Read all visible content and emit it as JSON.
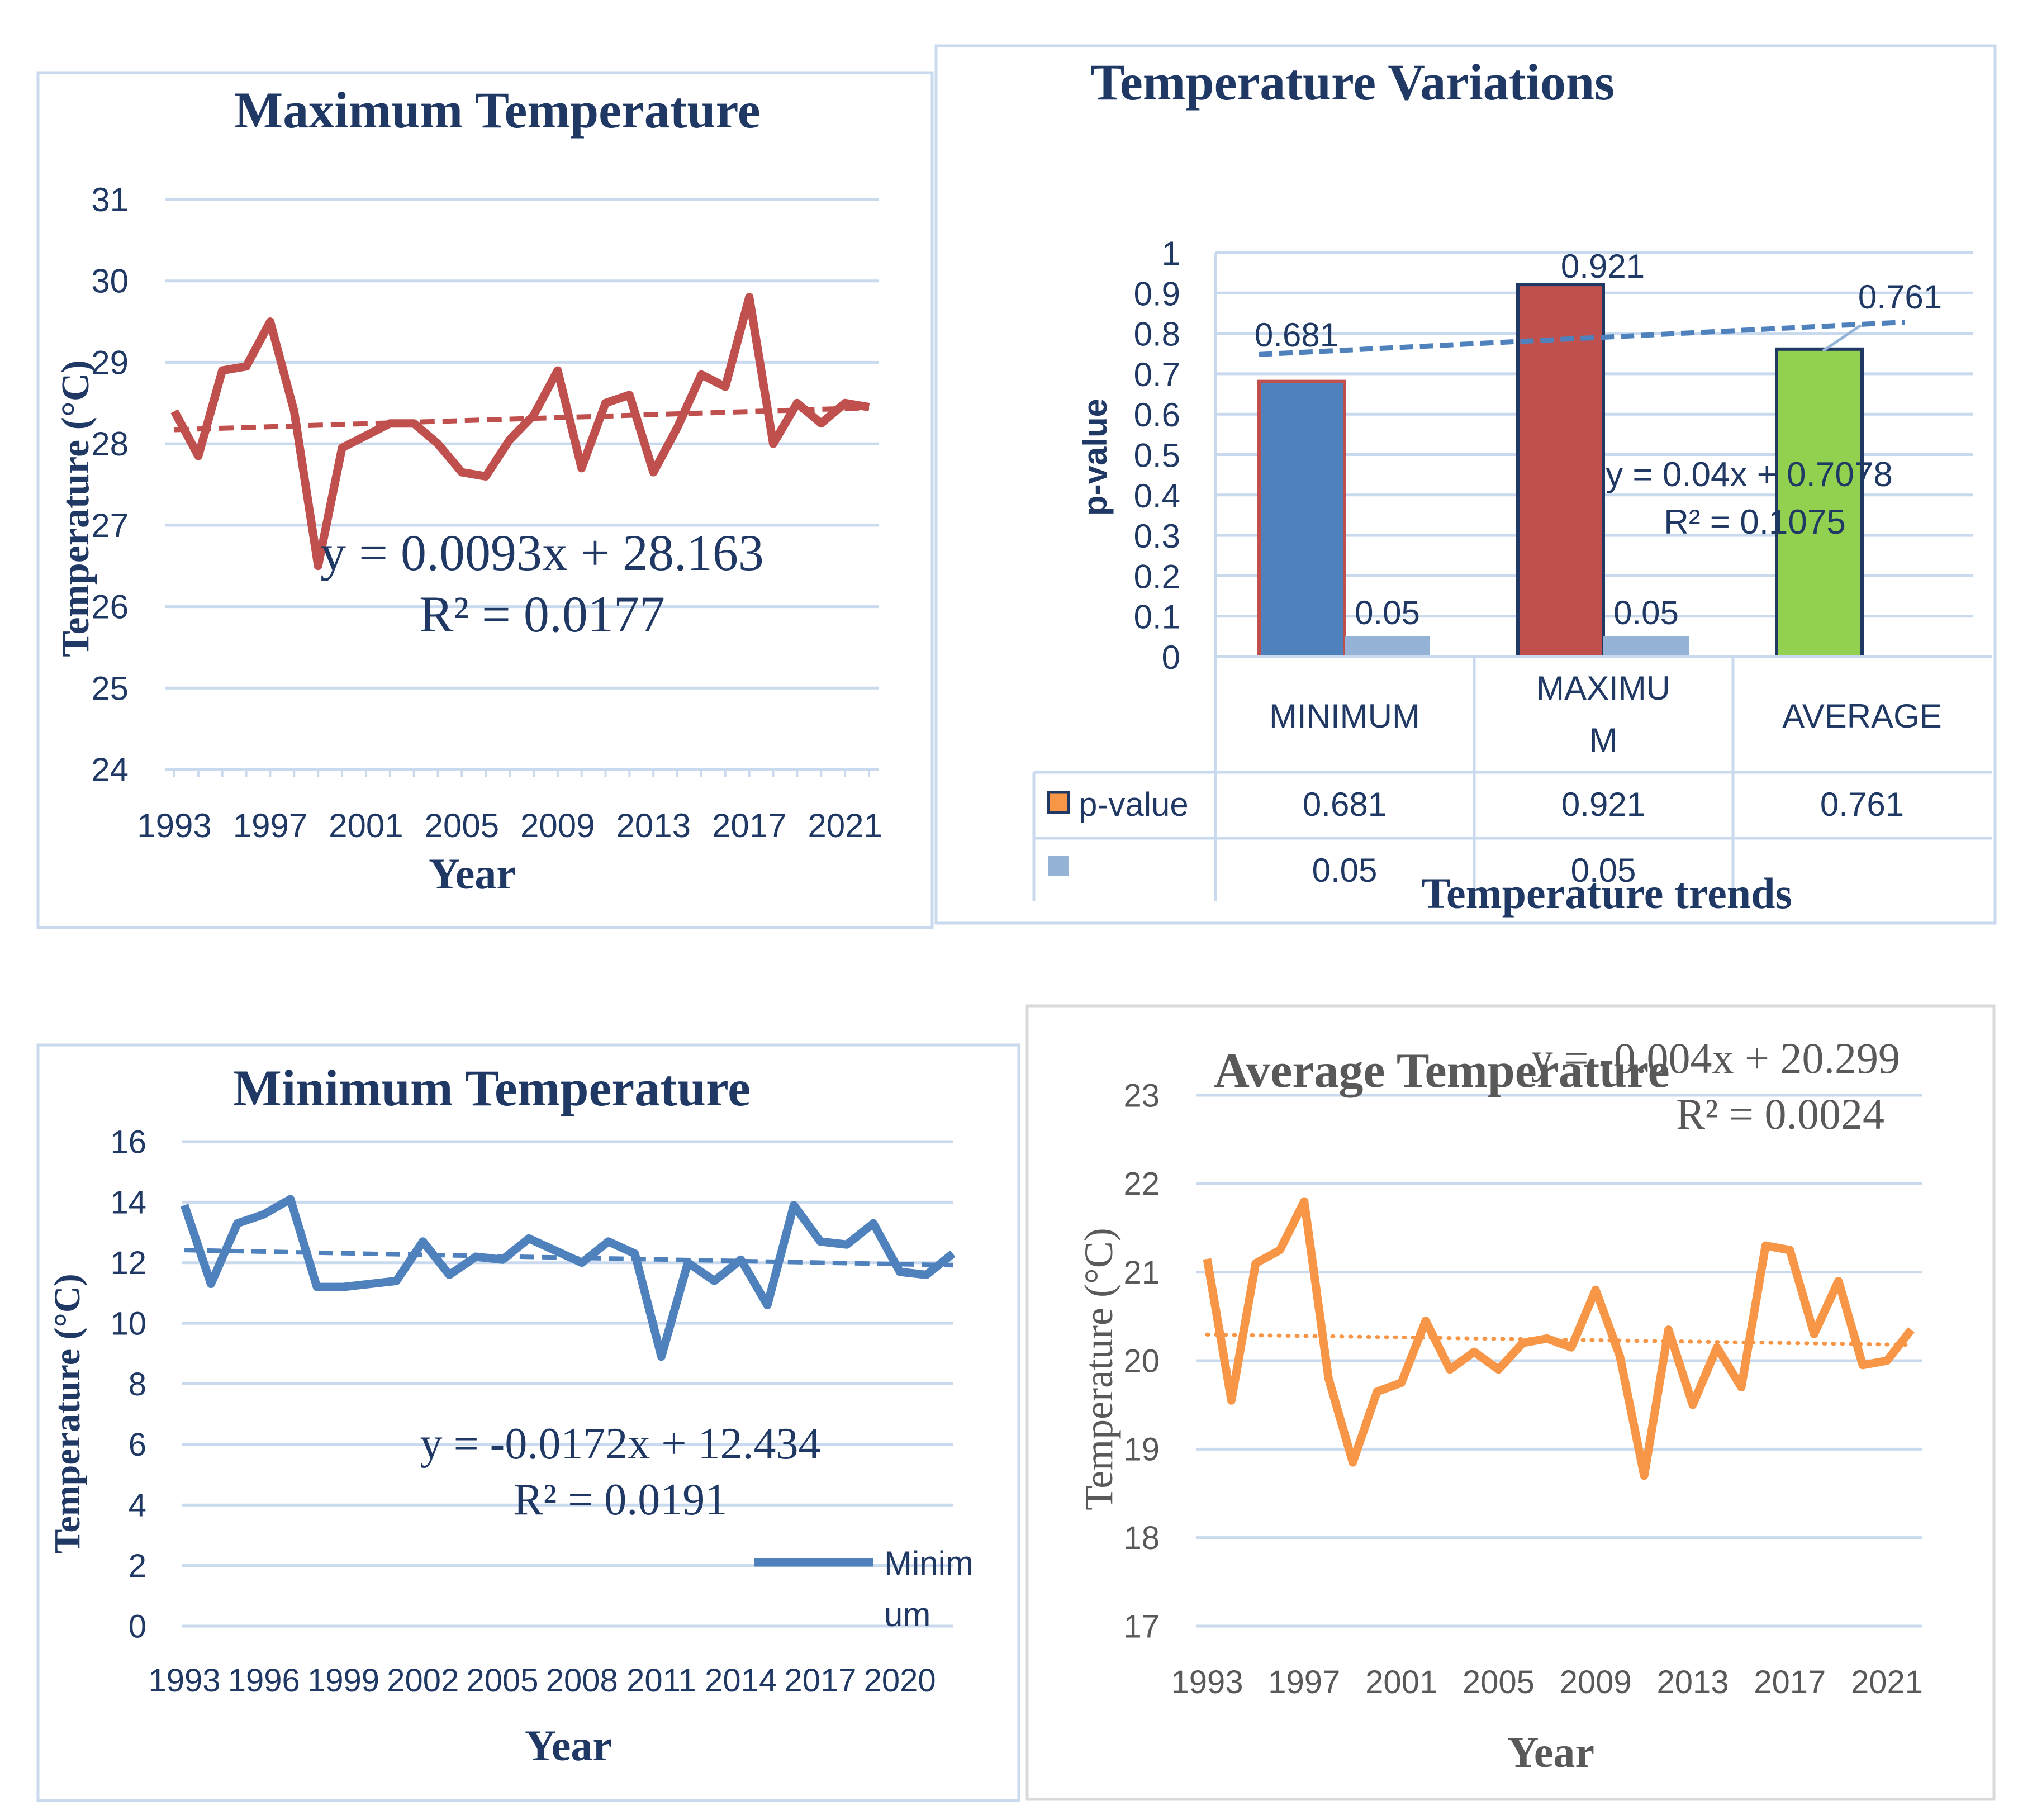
{
  "colors": {
    "title_navy": "#1F3864",
    "axis_text": "#1F3864",
    "grid": "#C9DAEE",
    "panel_border": "#C9DAEE",
    "max_red": "#C0504D",
    "min_blue": "#4F81BD",
    "avg_orange": "#F79646",
    "green": "#92D050",
    "light_blue_bar": "#95B3D7",
    "gray_text": "#595959",
    "dark_outline": "#1F3864"
  },
  "chart_data": [
    {
      "type": "line",
      "panel": "max",
      "title": "Maximum Temperature",
      "xlabel": "Year",
      "ylabel": "Temperature (°C)",
      "ylim": [
        24,
        31
      ],
      "yticks": [
        "24",
        "25",
        "26",
        "27",
        "28",
        "29",
        "30",
        "31"
      ],
      "xtick_labels": [
        "1993",
        "1997",
        "2001",
        "2005",
        "2009",
        "2013",
        "2017",
        "2021"
      ],
      "x": [
        1993,
        1994,
        1995,
        1996,
        1997,
        1998,
        1999,
        2000,
        2001,
        2002,
        2003,
        2004,
        2005,
        2006,
        2007,
        2008,
        2009,
        2010,
        2011,
        2012,
        2013,
        2014,
        2015,
        2016,
        2017,
        2018,
        2019,
        2020,
        2021,
        2022
      ],
      "series": [
        {
          "name": "Maximum",
          "values": [
            28.4,
            27.85,
            28.9,
            28.95,
            29.5,
            28.4,
            26.5,
            27.95,
            28.1,
            28.25,
            28.25,
            28.0,
            27.65,
            27.6,
            28.05,
            28.35,
            28.9,
            27.7,
            28.5,
            28.6,
            27.65,
            28.2,
            28.85,
            28.7,
            29.8,
            28.0,
            28.5,
            28.25,
            28.5,
            28.45
          ]
        }
      ],
      "trendline": {
        "slope": 0.0093,
        "intercept": 28.163,
        "style": "dashed"
      },
      "equation": "y = 0.0093x + 28.163",
      "r2": "R² = 0.0177"
    },
    {
      "type": "bar",
      "panel": "variations",
      "title": "Temperature Variations",
      "xlabel": "Temperature trends",
      "ylabel": "p-value",
      "ylim": [
        0,
        1
      ],
      "yticks": [
        "0",
        "0.1",
        "0.2",
        "0.3",
        "0.4",
        "0.5",
        "0.6",
        "0.7",
        "0.8",
        "0.9",
        "1"
      ],
      "categories": [
        "MINIMUM",
        "MAXIMUM",
        "AVERAGE"
      ],
      "category_lines": [
        [
          "MINIMUM"
        ],
        [
          "MAXIMU",
          "M"
        ],
        [
          "AVERAGE"
        ]
      ],
      "series": [
        {
          "name": "p-value",
          "values": [
            0.681,
            0.921,
            0.761
          ],
          "labels": [
            "0.681",
            "0.921",
            "0.761"
          ]
        },
        {
          "name": "",
          "values": [
            0.05,
            0.05,
            null
          ],
          "labels": [
            "0.05",
            "0.05",
            ""
          ]
        }
      ],
      "trendline": {
        "slope": 0.04,
        "intercept": 0.7078,
        "style": "dashed"
      },
      "equation": "y = 0.04x + 0.7078",
      "r2": "R² = 0.1075",
      "table": {
        "rows": [
          {
            "legend": "p-value",
            "cells": [
              "0.681",
              "0.921",
              "0.761"
            ]
          },
          {
            "legend": "",
            "cells": [
              "0.05",
              "0.05",
              ""
            ]
          }
        ]
      }
    },
    {
      "type": "line",
      "panel": "min",
      "title": "Minimum Temperature",
      "xlabel": "Year",
      "ylabel": "Temperature (°C)",
      "ylim": [
        0,
        16
      ],
      "yticks": [
        "0",
        "2",
        "4",
        "6",
        "8",
        "10",
        "12",
        "14",
        "16"
      ],
      "xtick_labels": [
        "1993",
        "1996",
        "1999",
        "2002",
        "2005",
        "2008",
        "2011",
        "2014",
        "2017",
        "2020"
      ],
      "x": [
        1993,
        1994,
        1995,
        1996,
        1997,
        1998,
        1999,
        2000,
        2001,
        2002,
        2003,
        2004,
        2005,
        2006,
        2007,
        2008,
        2009,
        2010,
        2011,
        2012,
        2013,
        2014,
        2015,
        2016,
        2017,
        2018,
        2019,
        2020,
        2021,
        2022
      ],
      "series": [
        {
          "name": "Minimum",
          "values": [
            13.9,
            11.3,
            13.3,
            13.6,
            14.1,
            11.2,
            11.2,
            11.3,
            11.4,
            12.7,
            11.6,
            12.2,
            12.1,
            12.8,
            12.4,
            12.0,
            12.7,
            12.3,
            8.9,
            12.0,
            11.4,
            12.1,
            10.6,
            13.9,
            12.7,
            12.6,
            13.3,
            11.7,
            11.6,
            12.3
          ]
        }
      ],
      "trendline": {
        "slope": -0.0172,
        "intercept": 12.434,
        "style": "dashed"
      },
      "equation": "y = -0.0172x + 12.434",
      "r2": "R² = 0.0191",
      "legend": {
        "label_lines": [
          "Minim",
          "um"
        ],
        "position": "bottom-right"
      }
    },
    {
      "type": "line",
      "panel": "avg",
      "title": "Average Temperature",
      "xlabel": "Year",
      "ylabel": "Temperature (°C)",
      "ylim": [
        17,
        23
      ],
      "yticks": [
        "17",
        "18",
        "19",
        "20",
        "21",
        "22",
        "23"
      ],
      "xtick_labels": [
        "1993",
        "1997",
        "2001",
        "2005",
        "2009",
        "2013",
        "2017",
        "2021"
      ],
      "x": [
        1993,
        1994,
        1995,
        1996,
        1997,
        1998,
        1999,
        2000,
        2001,
        2002,
        2003,
        2004,
        2005,
        2006,
        2007,
        2008,
        2009,
        2010,
        2011,
        2012,
        2013,
        2014,
        2015,
        2016,
        2017,
        2018,
        2019,
        2020,
        2021,
        2022
      ],
      "series": [
        {
          "name": "Average",
          "values": [
            21.15,
            19.55,
            21.1,
            21.25,
            21.8,
            19.8,
            18.85,
            19.65,
            19.75,
            20.45,
            19.9,
            20.1,
            19.9,
            20.2,
            20.25,
            20.15,
            20.8,
            20.05,
            18.7,
            20.35,
            19.5,
            20.15,
            19.7,
            21.3,
            21.25,
            20.3,
            20.9,
            19.95,
            20.0,
            20.35
          ]
        }
      ],
      "trendline": {
        "slope": -0.004,
        "intercept": 20.299,
        "style": "dotted"
      },
      "equation": "y = -0.004x + 20.299",
      "r2": "R² = 0.0024"
    }
  ]
}
